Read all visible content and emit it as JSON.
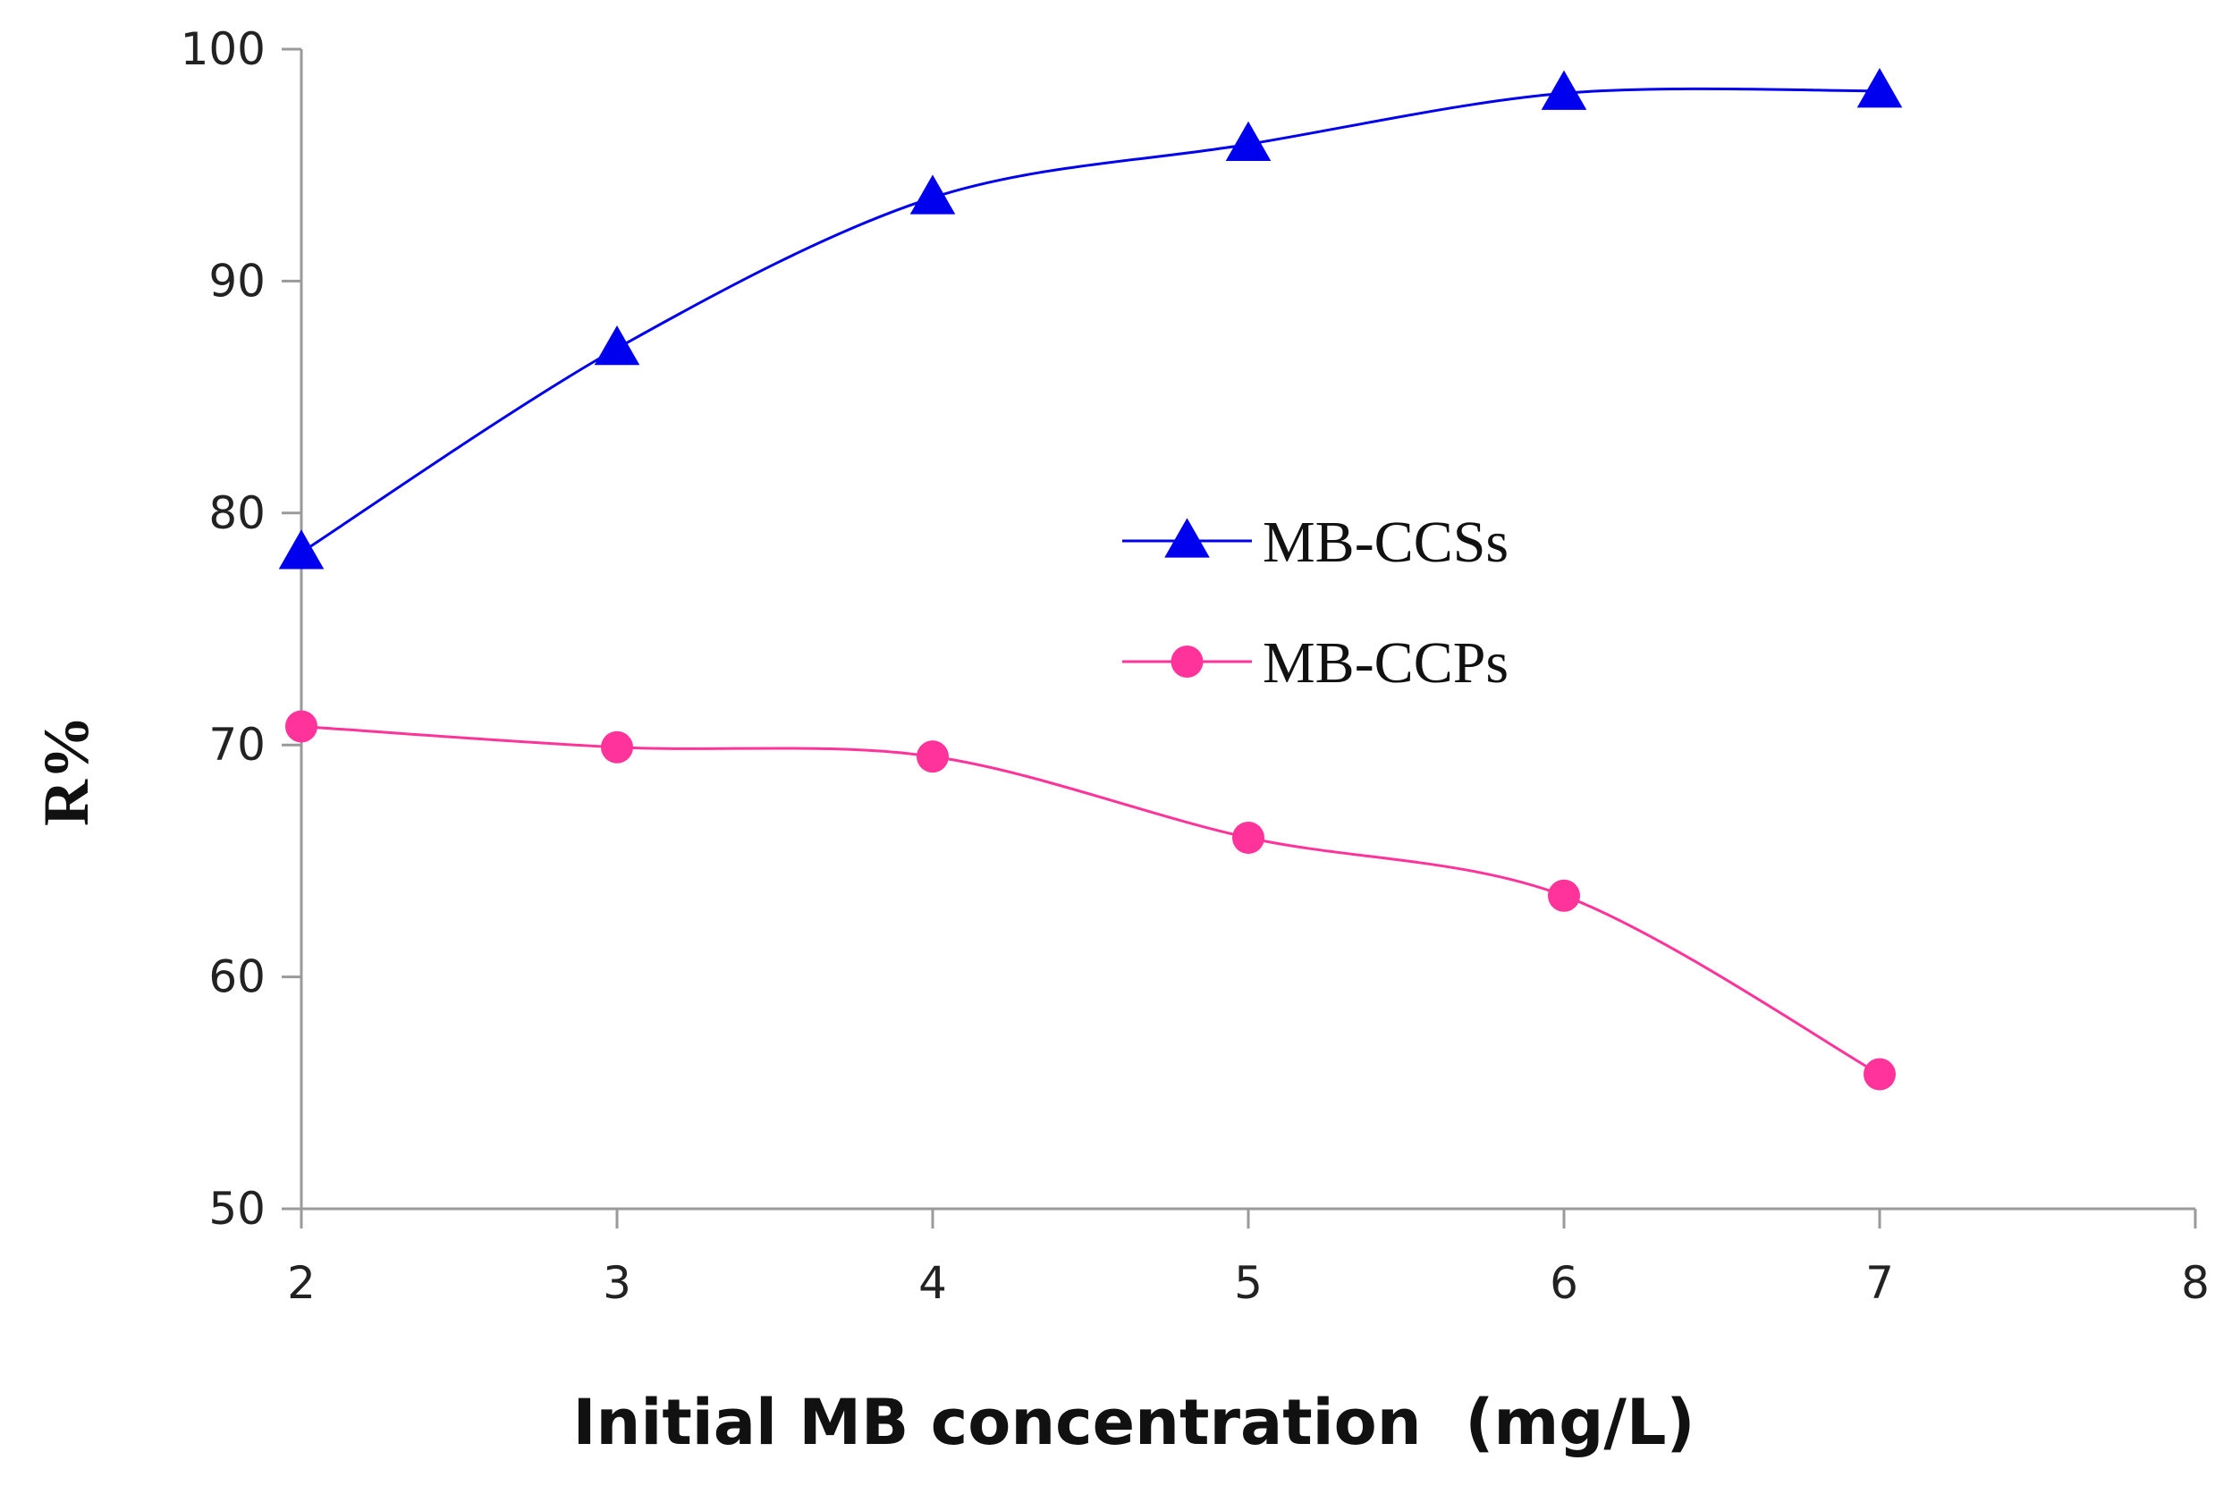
{
  "chart_data": {
    "type": "line",
    "title": "",
    "xlabel": "Initial MB concentration  (mg/L)",
    "ylabel": "R%",
    "xlim": [
      2,
      8
    ],
    "ylim": [
      50,
      100
    ],
    "xticks": [
      2,
      3,
      4,
      5,
      6,
      7,
      8
    ],
    "yticks": [
      50,
      60,
      70,
      80,
      90,
      100
    ],
    "grid": false,
    "legend_position": "center-right",
    "series": [
      {
        "name": "MB-CCSs",
        "marker": "triangle",
        "color": "#0000ee",
        "x": [
          2,
          3,
          4,
          5,
          6,
          7
        ],
        "y": [
          78.3,
          87.1,
          93.6,
          95.9,
          98.1,
          98.2
        ]
      },
      {
        "name": "MB-CCPs",
        "marker": "circle",
        "color": "#ff3399",
        "x": [
          2,
          3,
          4,
          5,
          6,
          7
        ],
        "y": [
          70.8,
          69.9,
          69.5,
          66.0,
          63.5,
          55.8
        ]
      }
    ]
  }
}
